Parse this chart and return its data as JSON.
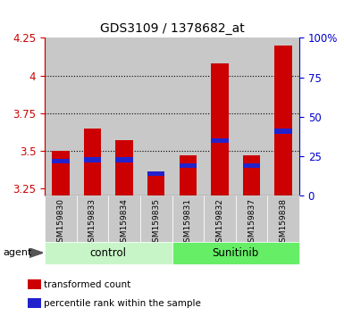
{
  "title": "GDS3109 / 1378682_at",
  "samples": [
    "GSM159830",
    "GSM159833",
    "GSM159834",
    "GSM159835",
    "GSM159831",
    "GSM159832",
    "GSM159837",
    "GSM159838"
  ],
  "red_values": [
    3.5,
    3.65,
    3.57,
    3.35,
    3.47,
    4.08,
    3.47,
    4.2
  ],
  "blue_values": [
    3.43,
    3.44,
    3.44,
    3.35,
    3.4,
    3.57,
    3.4,
    3.63
  ],
  "ymin": 3.2,
  "ymax": 4.25,
  "yticks": [
    3.25,
    3.5,
    3.75,
    4.0,
    4.25
  ],
  "ytick_labels": [
    "3.25",
    "3.5",
    "3.75",
    "4",
    "4.25"
  ],
  "grid_values": [
    3.5,
    3.75,
    4.0
  ],
  "right_yticks_pct": [
    0,
    25,
    50,
    75,
    100
  ],
  "right_ytick_labels": [
    "0",
    "25",
    "50",
    "75",
    "100%"
  ],
  "groups": [
    {
      "label": "control",
      "start": 0,
      "end": 3,
      "color": "#c8f5c8"
    },
    {
      "label": "Sunitinib",
      "start": 4,
      "end": 7,
      "color": "#66ee66"
    }
  ],
  "bar_color": "#cc0000",
  "blue_color": "#2222cc",
  "bar_width": 0.55,
  "blue_bar_height": 0.03,
  "agent_label": "agent",
  "legend_items": [
    {
      "label": "transformed count",
      "color": "#cc0000"
    },
    {
      "label": "percentile rank within the sample",
      "color": "#2222cc"
    }
  ],
  "title_color": "#000000",
  "left_axis_color": "#cc0000",
  "right_axis_color": "#0000cc",
  "plot_bg_color": "#ffffff",
  "tick_bg_color": "#c8c8c8",
  "bar_bg_color": "#c8c8c8"
}
